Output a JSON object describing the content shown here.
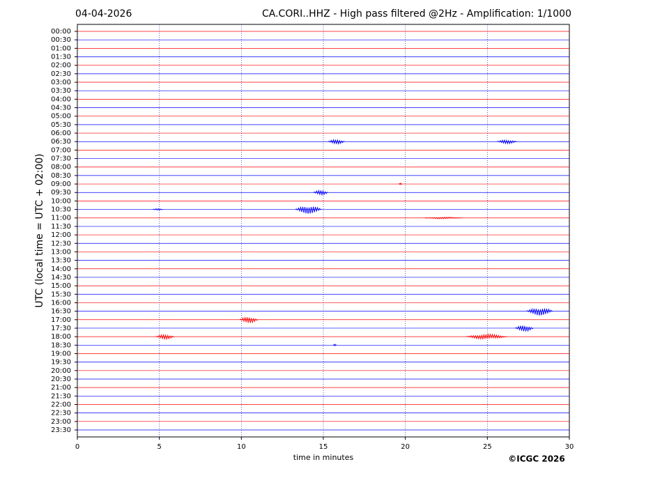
{
  "chart_data": {
    "type": "helicorder",
    "date": "04-04-2026",
    "title": "CA.CORI..HHZ - High pass filtered @2Hz - Amplification: 1/1000",
    "ylabel": "UTC (local time = UTC + 02:00)",
    "xlabel": "time in minutes",
    "copyright": "©ICGC 2026",
    "categories": [
      "00:00",
      "00:30",
      "01:00",
      "01:30",
      "02:00",
      "02:30",
      "03:00",
      "03:30",
      "04:00",
      "04:30",
      "05:00",
      "05:30",
      "06:00",
      "06:30",
      "07:00",
      "07:30",
      "08:00",
      "08:30",
      "09:00",
      "09:30",
      "10:00",
      "10:30",
      "11:00",
      "11:30",
      "12:00",
      "12:30",
      "13:00",
      "13:30",
      "14:00",
      "14:30",
      "15:00",
      "15:30",
      "16:00",
      "16:30",
      "17:00",
      "17:30",
      "18:00",
      "18:30",
      "19:00",
      "19:30",
      "20:00",
      "20:30",
      "21:00",
      "21:30",
      "22:00",
      "22:30",
      "23:00",
      "23:30"
    ],
    "colors": [
      "#ff0000",
      "#0000ff"
    ],
    "xlim": [
      0,
      30
    ],
    "xticks": [
      0,
      5,
      10,
      15,
      20,
      25,
      30
    ],
    "grid": true,
    "events": [
      {
        "row": 13,
        "start": 15.3,
        "end": 16.3,
        "amplitude": 0.3
      },
      {
        "row": 13,
        "start": 25.6,
        "end": 26.8,
        "amplitude": 0.25
      },
      {
        "row": 18,
        "start": 19.6,
        "end": 19.8,
        "amplitude": 0.1
      },
      {
        "row": 19,
        "start": 14.4,
        "end": 15.3,
        "amplitude": 0.3
      },
      {
        "row": 21,
        "start": 4.6,
        "end": 5.2,
        "amplitude": 0.1
      },
      {
        "row": 21,
        "start": 13.3,
        "end": 14.9,
        "amplitude": 0.5
      },
      {
        "row": 22,
        "start": 21.2,
        "end": 23.4,
        "amplitude": 0.1
      },
      {
        "row": 33,
        "start": 27.4,
        "end": 29.0,
        "amplitude": 0.5
      },
      {
        "row": 34,
        "start": 9.9,
        "end": 11.0,
        "amplitude": 0.4
      },
      {
        "row": 35,
        "start": 26.7,
        "end": 27.8,
        "amplitude": 0.4
      },
      {
        "row": 36,
        "start": 4.8,
        "end": 5.9,
        "amplitude": 0.3
      },
      {
        "row": 36,
        "start": 23.7,
        "end": 26.2,
        "amplitude": 0.3
      },
      {
        "row": 37,
        "start": 15.6,
        "end": 15.8,
        "amplitude": 0.1
      }
    ]
  }
}
